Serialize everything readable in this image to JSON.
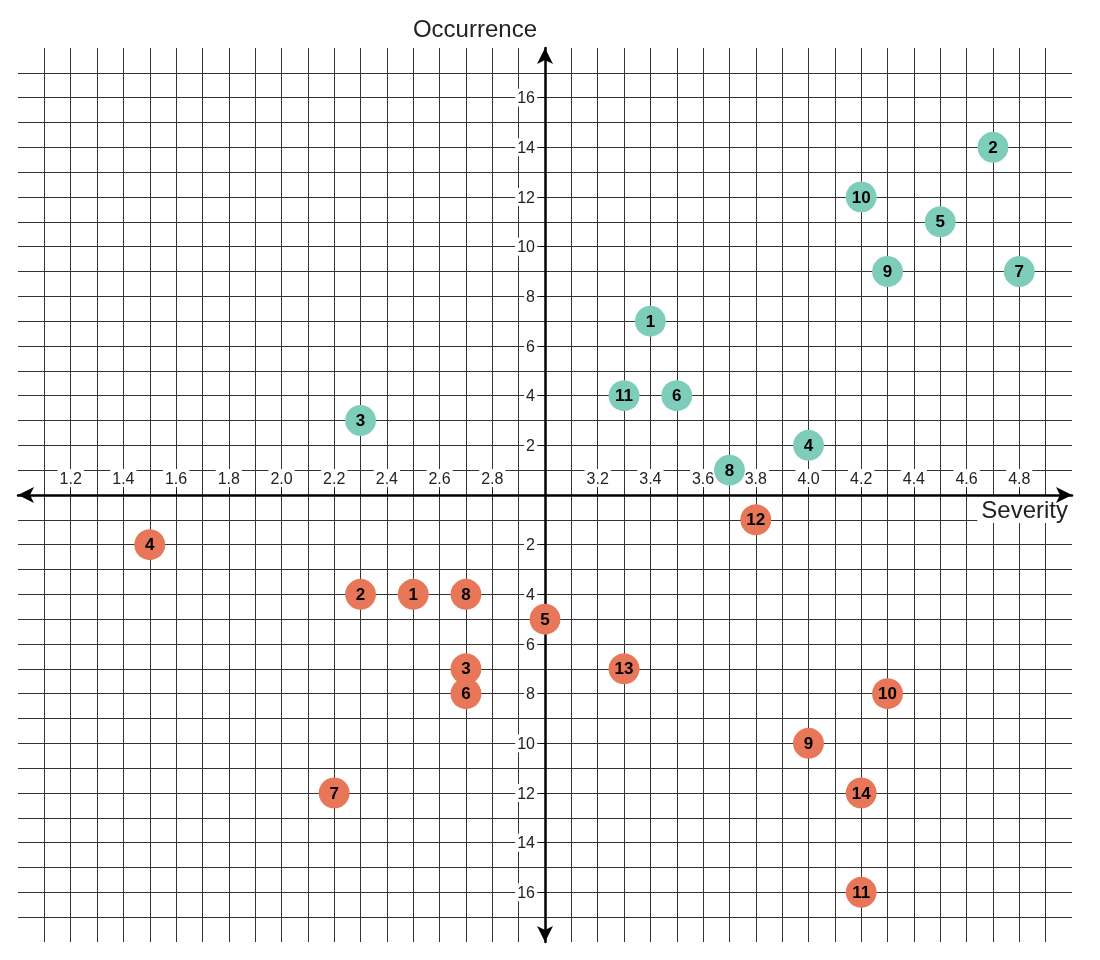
{
  "chart_data": {
    "type": "scatter",
    "xlabel": "Severity",
    "ylabel": "Occurrence",
    "xlim": [
      1.0,
      5.0
    ],
    "ylim": [
      -18,
      18
    ],
    "xticks": [
      1.2,
      1.4,
      1.6,
      1.8,
      {
        "value": 2.0,
        "label": "2.0"
      },
      2.2,
      2.4,
      2.6,
      2.8,
      3.2,
      3.4,
      3.6,
      3.8,
      {
        "value": 4.0,
        "label": "4.0"
      },
      4.2,
      4.4,
      4.6,
      4.8
    ],
    "yticks": [
      {
        "value": -16,
        "label": "16"
      },
      {
        "value": -14,
        "label": "14"
      },
      {
        "value": -12,
        "label": "12"
      },
      {
        "value": -10,
        "label": "10"
      },
      {
        "value": -8,
        "label": "8"
      },
      {
        "value": -6,
        "label": "6"
      },
      {
        "value": -4,
        "label": "4"
      },
      {
        "value": -2,
        "label": "2"
      },
      2,
      4,
      6,
      8,
      10,
      12,
      14,
      16
    ],
    "grid": true,
    "marker": "circle",
    "series": [
      {
        "color": "#7ecdbb",
        "x": [
          3.4,
          4.7,
          2.3,
          4.0,
          4.5,
          3.5,
          4.8,
          3.7,
          4.3,
          4.2,
          3.3
        ],
        "values": [
          7,
          14,
          3,
          2,
          11,
          4,
          9,
          1,
          9,
          12,
          4
        ]
      },
      {
        "color": "#e8775a",
        "x": [
          2.5,
          2.3,
          2.7,
          1.5,
          3.0,
          2.7,
          2.2,
          2.7,
          4.0,
          4.3,
          4.2,
          3.8,
          3.3,
          4.2
        ],
        "values": [
          -4,
          -4,
          -7,
          -2,
          -5,
          -8,
          -12,
          -4,
          -10,
          -8,
          -16,
          -1,
          -7,
          -12
        ]
      }
    ],
    "annotations": [
      {
        "text": "1",
        "x": 3.4,
        "y": 7
      },
      {
        "text": "2",
        "x": 4.7,
        "y": 14
      },
      {
        "text": "3",
        "x": 2.3,
        "y": 3
      },
      {
        "text": "4",
        "x": 4.0,
        "y": 2
      },
      {
        "text": "5",
        "x": 4.5,
        "y": 11
      },
      {
        "text": "6",
        "x": 3.5,
        "y": 4
      },
      {
        "text": "7",
        "x": 4.8,
        "y": 9
      },
      {
        "text": "8",
        "x": 3.7,
        "y": 1
      },
      {
        "text": "9",
        "x": 4.3,
        "y": 9
      },
      {
        "text": "10",
        "x": 4.2,
        "y": 12
      },
      {
        "text": "11",
        "x": 3.3,
        "y": 4
      },
      {
        "text": "1",
        "x": 2.5,
        "y": -4
      },
      {
        "text": "2",
        "x": 2.3,
        "y": -4
      },
      {
        "text": "3",
        "x": 2.7,
        "y": -7
      },
      {
        "text": "4",
        "x": 1.5,
        "y": -2
      },
      {
        "text": "5",
        "x": 3.0,
        "y": -5
      },
      {
        "text": "6",
        "x": 2.7,
        "y": -8
      },
      {
        "text": "7",
        "x": 2.2,
        "y": -12
      },
      {
        "text": "8",
        "x": 2.7,
        "y": -4
      },
      {
        "text": "9",
        "x": 4.0,
        "y": -10
      },
      {
        "text": "10",
        "x": 4.3,
        "y": -8
      },
      {
        "text": "11",
        "x": 4.2,
        "y": -16
      },
      {
        "text": "12",
        "x": 3.8,
        "y": -1
      },
      {
        "text": "13",
        "x": 3.3,
        "y": -7
      },
      {
        "text": "14",
        "x": 4.2,
        "y": -12
      }
    ]
  }
}
